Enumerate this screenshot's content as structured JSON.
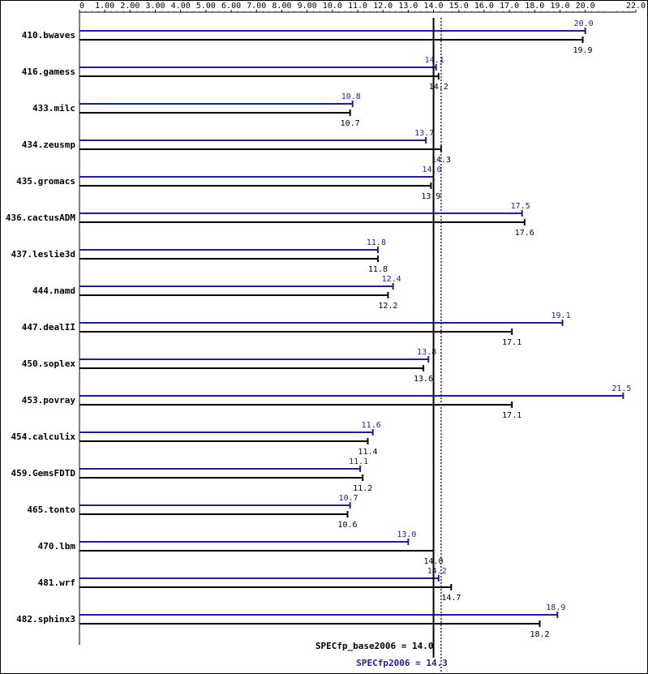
{
  "colors": {
    "base": "#000000",
    "peak": "#1f1f8f",
    "border": "#000000",
    "background": "#ffffff"
  },
  "chart_data": {
    "type": "bar",
    "orientation": "horizontal",
    "title": "",
    "xlim": [
      0,
      22
    ],
    "x_ticks": [
      "0",
      "1.00",
      "2.00",
      "3.00",
      "4.00",
      "5.00",
      "6.00",
      "7.00",
      "8.00",
      "9.00",
      "10.0",
      "11.0",
      "12.0",
      "13.0",
      "14.0",
      "15.0",
      "16.0",
      "17.0",
      "18.0",
      "19.0",
      "20.0",
      "22.0"
    ],
    "x_tick_values": [
      0,
      1,
      2,
      3,
      4,
      5,
      6,
      7,
      8,
      9,
      10,
      11,
      12,
      13,
      14,
      15,
      16,
      17,
      18,
      19,
      20,
      22
    ],
    "categories": [
      "410.bwaves",
      "416.gamess",
      "433.milc",
      "434.zeusmp",
      "435.gromacs",
      "436.cactusADM",
      "437.leslie3d",
      "444.namd",
      "447.dealII",
      "450.soplex",
      "453.povray",
      "454.calculix",
      "459.GemsFDTD",
      "465.tonto",
      "470.lbm",
      "481.wrf",
      "482.sphinx3"
    ],
    "series": [
      {
        "key": "peak",
        "values": [
          20.0,
          14.1,
          10.8,
          13.7,
          14.0,
          17.5,
          11.8,
          12.4,
          19.1,
          13.8,
          21.5,
          11.6,
          11.1,
          10.7,
          13.0,
          14.2,
          18.9
        ],
        "labels": [
          "20.0",
          "14.1",
          "10.8",
          "13.7",
          "14.0",
          "17.5",
          "11.8",
          "12.4",
          "19.1",
          "13.8",
          "21.5",
          "11.6",
          "11.1",
          "10.7",
          "13.0",
          "14.2",
          "18.9"
        ]
      },
      {
        "key": "base",
        "values": [
          19.9,
          14.2,
          10.7,
          14.3,
          13.9,
          17.6,
          11.8,
          12.2,
          17.1,
          13.6,
          17.1,
          11.4,
          11.2,
          10.6,
          14.0,
          14.7,
          18.2
        ],
        "labels": [
          "19.9",
          "14.2",
          "10.7",
          "14.3",
          "13.9",
          "17.6",
          "11.8",
          "12.2",
          "17.1",
          "13.6",
          "17.1",
          "11.4",
          "11.2",
          "10.6",
          "14.0",
          "14.7",
          "18.2"
        ]
      }
    ],
    "reference_lines": [
      {
        "key": "base",
        "value": 14.0,
        "label": "SPECfp_base2006 = 14.0",
        "style": "solid"
      },
      {
        "key": "peak",
        "value": 14.3,
        "label": "SPECfp2006 = 14.3",
        "style": "dotted"
      }
    ],
    "grid": false,
    "legend": "none"
  }
}
